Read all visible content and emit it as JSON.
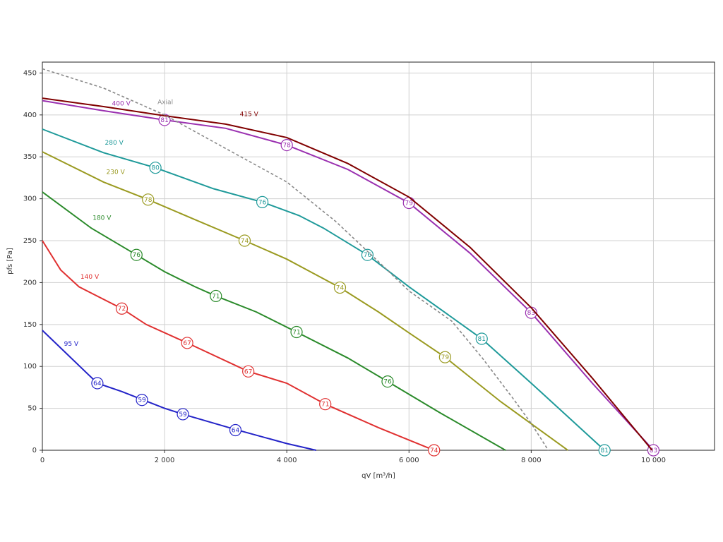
{
  "chart_data": {
    "type": "line",
    "x_label": "qV [m³/h]",
    "y_label": "pfs [Pa]",
    "xlim": [
      0,
      11000
    ],
    "ylim": [
      0,
      463
    ],
    "xticks": [
      0,
      {
        "value": 2000,
        "label": "2 000"
      },
      {
        "value": 4000,
        "label": "4 000"
      },
      {
        "value": 6000,
        "label": "6 000"
      },
      {
        "value": 8000,
        "label": "8 000"
      },
      {
        "value": 10000,
        "label": "10 000"
      }
    ],
    "yticks": [
      0,
      50,
      100,
      150,
      200,
      250,
      300,
      350,
      400,
      450
    ],
    "grid": true,
    "series": [
      {
        "name": "95 V",
        "color": "#2323c8",
        "x": [
          0,
          400,
          900,
          1300,
          1650,
          2000,
          2300,
          3150,
          4000,
          4480
        ],
        "values": [
          143,
          115,
          80,
          70,
          60,
          50,
          43,
          25,
          8,
          0
        ],
        "markers": {
          "x": [
            900,
            1630,
            2300,
            3160
          ],
          "y": [
            80,
            60,
            43,
            24
          ],
          "labels": [
            64,
            59,
            59,
            64
          ]
        }
      },
      {
        "name": "140 V",
        "color": "#e03030",
        "x": [
          0,
          300,
          600,
          1300,
          1700,
          2370,
          3370,
          4000,
          4630,
          5500,
          6410
        ],
        "values": [
          250,
          215,
          195,
          169,
          150,
          128,
          94,
          80,
          55,
          27,
          0
        ],
        "markers": {
          "x": [
            1300,
            2370,
            3370,
            4630,
            6410
          ],
          "y": [
            169,
            128,
            94,
            55,
            0
          ],
          "labels": [
            72,
            67,
            67,
            71,
            74
          ]
        }
      },
      {
        "name": "180 V",
        "color": "#2a8a2a",
        "x": [
          0,
          800,
          1540,
          2000,
          2500,
          2840,
          3500,
          4160,
          5000,
          5650,
          6500,
          7580
        ],
        "values": [
          308,
          265,
          233,
          213,
          195,
          184,
          165,
          141,
          110,
          82,
          45,
          0
        ],
        "markers": {
          "x": [
            1540,
            2840,
            4160,
            5650
          ],
          "y": [
            233,
            184,
            141,
            82
          ],
          "labels": [
            76,
            71,
            71,
            76
          ]
        }
      },
      {
        "name": "230 V",
        "color": "#9a9a20",
        "x": [
          0,
          1000,
          1730,
          2500,
          3310,
          4000,
          4870,
          5500,
          6000,
          6590,
          7500,
          8600
        ],
        "values": [
          356,
          320,
          299,
          275,
          250,
          228,
          194,
          165,
          140,
          111,
          58,
          0
        ],
        "markers": {
          "x": [
            1730,
            3310,
            4870,
            6590
          ],
          "y": [
            299,
            250,
            194,
            111
          ],
          "labels": [
            78,
            74,
            74,
            79
          ]
        }
      },
      {
        "name": "280 V",
        "color": "#1f9a9a",
        "x": [
          0,
          1000,
          1850,
          2800,
          3600,
          4200,
          4600,
          5320,
          6000,
          7190,
          8000,
          9200
        ],
        "values": [
          383,
          355,
          337,
          312,
          296,
          280,
          265,
          233,
          195,
          133,
          80,
          0
        ],
        "markers": {
          "x": [
            1850,
            3600,
            5320,
            7190,
            9200
          ],
          "y": [
            337,
            296,
            233,
            133,
            0
          ],
          "labels": [
            80,
            76,
            76,
            81,
            81
          ]
        }
      },
      {
        "name": "400 V",
        "color": "#9a30b0",
        "x": [
          0,
          1000,
          2000,
          3000,
          4000,
          5000,
          6000,
          7000,
          8000,
          9000,
          10000
        ],
        "values": [
          417,
          405,
          394,
          384,
          364,
          335,
          295,
          235,
          164,
          80,
          0
        ],
        "markers": {
          "x": [
            2000,
            4000,
            6000,
            8000,
            10000
          ],
          "y": [
            394,
            364,
            295,
            164,
            0
          ],
          "labels": [
            81,
            78,
            79,
            83,
            83
          ]
        }
      },
      {
        "name": "415 V",
        "color": "#800000",
        "x": [
          0,
          1000,
          2000,
          3000,
          4000,
          5000,
          6000,
          7000,
          8000,
          9000,
          9980
        ],
        "values": [
          420,
          410,
          399,
          389,
          373,
          342,
          302,
          242,
          170,
          86,
          0
        ]
      },
      {
        "name": "Axial",
        "color": "#888888",
        "dashed": true,
        "x": [
          0,
          1000,
          2000,
          3000,
          4000,
          4800,
          5500,
          6000,
          6700,
          7200,
          7700,
          8000,
          8280
        ],
        "values": [
          455,
          432,
          400,
          360,
          320,
          273,
          225,
          190,
          154,
          110,
          62,
          32,
          0
        ]
      }
    ]
  }
}
